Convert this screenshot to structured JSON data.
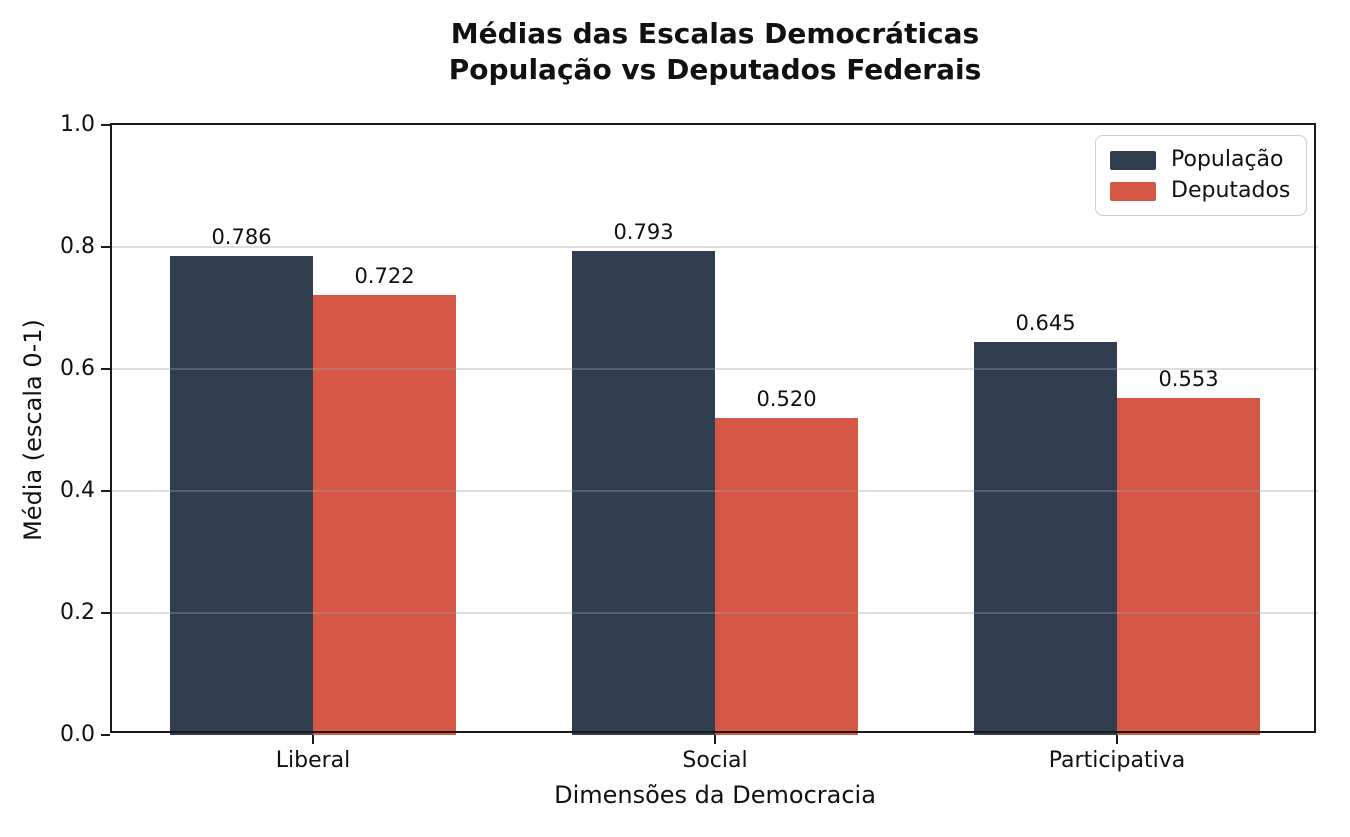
{
  "figure": {
    "title_line1": "Médias das Escalas Democráticas",
    "title_line2": "População vs Deputados Federais"
  },
  "chart_data": {
    "type": "bar",
    "title": "Médias das Escalas Democráticas\nPopulação vs Deputados Federais",
    "categories": [
      "Liberal",
      "Social",
      "Participativa"
    ],
    "series": [
      {
        "name": "População",
        "color": "#2f3d4e",
        "values": [
          0.786,
          0.793,
          0.645
        ]
      },
      {
        "name": "Deputados",
        "color": "#d55847",
        "values": [
          0.722,
          0.52,
          0.553
        ]
      }
    ],
    "xlabel": "Dimensões da Democracia",
    "ylabel": "Média (escala 0-1)",
    "ylim": [
      0.0,
      1.0
    ],
    "yticks": [
      0.0,
      0.2,
      0.4,
      0.6,
      0.8,
      1.0
    ],
    "grid": "horizontal-light",
    "legend_position": "upper-right",
    "value_label_format": "toFixed(3)",
    "style": {
      "spine_color": "#1a1a1a",
      "grid_color": "#e4e4e4",
      "background": "#ffffff",
      "legend_border": "#cccccc",
      "text_color": "#111111"
    }
  }
}
